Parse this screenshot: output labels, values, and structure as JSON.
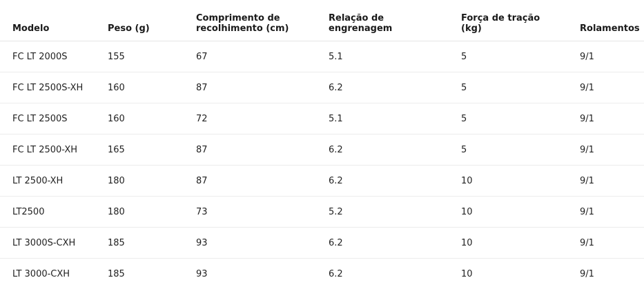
{
  "table": {
    "columns": [
      "Modelo",
      "Peso (g)",
      "Comprimento de recolhimento (cm)",
      "Relação de engrenagem",
      "Força de tração (kg)",
      "Rolamentos"
    ],
    "rows": [
      [
        "FC LT 2000S",
        "155",
        "67",
        "5.1",
        "5",
        "9/1"
      ],
      [
        "FC LT 2500S-XH",
        "160",
        "87",
        "6.2",
        "5",
        "9/1"
      ],
      [
        "FC LT 2500S",
        "160",
        "72",
        "5.1",
        "5",
        "9/1"
      ],
      [
        "FC LT 2500-XH",
        "165",
        "87",
        "6.2",
        "5",
        "9/1"
      ],
      [
        "LT 2500-XH",
        "180",
        "87",
        "6.2",
        "10",
        "9/1"
      ],
      [
        "LT2500",
        "180",
        "73",
        "5.2",
        "10",
        "9/1"
      ],
      [
        "LT 3000S-CXH",
        "185",
        "93",
        "6.2",
        "10",
        "9/1"
      ],
      [
        "LT 3000-CXH",
        "185",
        "93",
        "6.2",
        "10",
        "9/1"
      ]
    ]
  }
}
